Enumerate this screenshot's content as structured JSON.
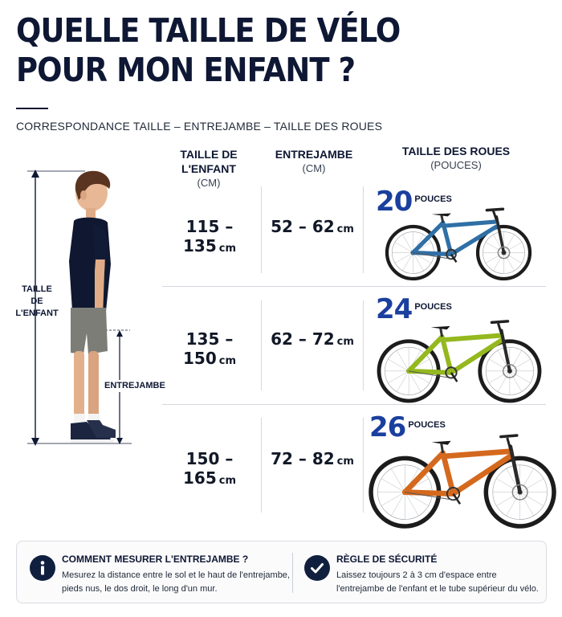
{
  "header": {
    "title_line1": "QUELLE TAILLE DE VÉLO",
    "title_line2": "POUR MON ENFANT ?",
    "subtitle": "CORRESPONDANCE TAILLE – ENTREJAMBE – TAILLE DES ROUES"
  },
  "columns": {
    "child_height": {
      "main": "TAILLE DE L'ENFANT",
      "sub": "(CM)"
    },
    "inseam": {
      "main": "ENTREJAMBE",
      "sub": "(CM)"
    },
    "wheel": {
      "main": "TAILLE DES ROUES",
      "sub": "(POUCES)"
    }
  },
  "unit": "cm",
  "rows": [
    {
      "height": "115 – 135",
      "inseam": "52 – 62",
      "wheel": "20",
      "wheel_unit": "POUCES",
      "bike_color": "#2f6fa6"
    },
    {
      "height": "135 – 150",
      "inseam": "62 – 72",
      "wheel": "24",
      "wheel_unit": "POUCES",
      "bike_color": "#94b81e"
    },
    {
      "height": "150 – 165",
      "inseam": "72 – 82",
      "wheel": "26",
      "wheel_unit": "POUCES",
      "bike_color": "#d4691e"
    }
  ],
  "figure": {
    "height_label_line1": "TAILLE",
    "height_label_line2": "DE L'ENFANT",
    "inseam_label": "ENTREJAMBE"
  },
  "info": {
    "left": {
      "icon": "info-icon",
      "title": "COMMENT MESURER L'ENTREJAMBE ?",
      "text_line1": "Mesurez la distance entre le sol et le haut de l'entrejambe,",
      "text_line2": "pieds nus, le dos droit, le long d'un mur."
    },
    "right": {
      "icon": "check-icon",
      "title": "RÈGLE DE SÉCURITÉ",
      "text_line1": "Laissez toujours 2 à 3 cm d'espace entre",
      "text_line2": "l'entrejambe de l'enfant et le tube supérieur du vélo."
    }
  },
  "colors": {
    "navy": "#0e1733",
    "wheel_number": "#1a3f9e"
  }
}
